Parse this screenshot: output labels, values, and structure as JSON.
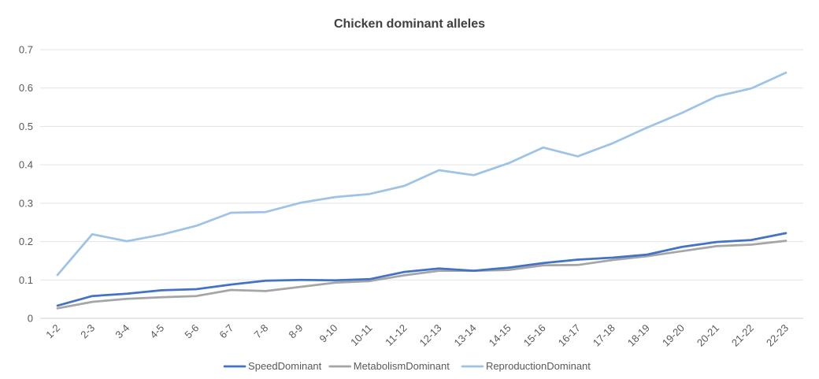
{
  "chart_data": {
    "type": "line",
    "title": "Chicken dominant alleles",
    "xlabel": "",
    "ylabel": "",
    "categories": [
      "1-2",
      "2-3",
      "3-4",
      "4-5",
      "5-6",
      "6-7",
      "7-8",
      "8-9",
      "9-10",
      "10-11",
      "11-12",
      "12-13",
      "13-14",
      "14-15",
      "15-16",
      "16-17",
      "17-18",
      "18-19",
      "19-20",
      "20-21",
      "21-22",
      "22-23"
    ],
    "ylim": [
      0,
      0.7
    ],
    "yticks": [
      "0",
      "0.1",
      "0.2",
      "0.3",
      "0.4",
      "0.5",
      "0.6",
      "0.7"
    ],
    "grid": true,
    "legend_position": "bottom",
    "series": [
      {
        "name": "SpeedDominant",
        "color": "#4472C4",
        "values": [
          0.033,
          0.058,
          0.064,
          0.073,
          0.076,
          0.088,
          0.098,
          0.1,
          0.099,
          0.102,
          0.121,
          0.13,
          0.124,
          0.132,
          0.144,
          0.153,
          0.158,
          0.166,
          0.186,
          0.199,
          0.204,
          0.222
        ]
      },
      {
        "name": "MetabolismDominant",
        "color": "#A5A5A5",
        "values": [
          0.026,
          0.043,
          0.051,
          0.055,
          0.058,
          0.074,
          0.071,
          0.082,
          0.093,
          0.097,
          0.112,
          0.124,
          0.124,
          0.126,
          0.138,
          0.139,
          0.152,
          0.162,
          0.175,
          0.188,
          0.192,
          0.202
        ]
      },
      {
        "name": "ReproductionDominant",
        "color": "#9DC3E6",
        "values": [
          0.113,
          0.219,
          0.201,
          0.218,
          0.241,
          0.275,
          0.277,
          0.301,
          0.316,
          0.324,
          0.345,
          0.386,
          0.373,
          0.404,
          0.445,
          0.422,
          0.456,
          0.497,
          0.535,
          0.578,
          0.599,
          0.64
        ]
      }
    ]
  }
}
